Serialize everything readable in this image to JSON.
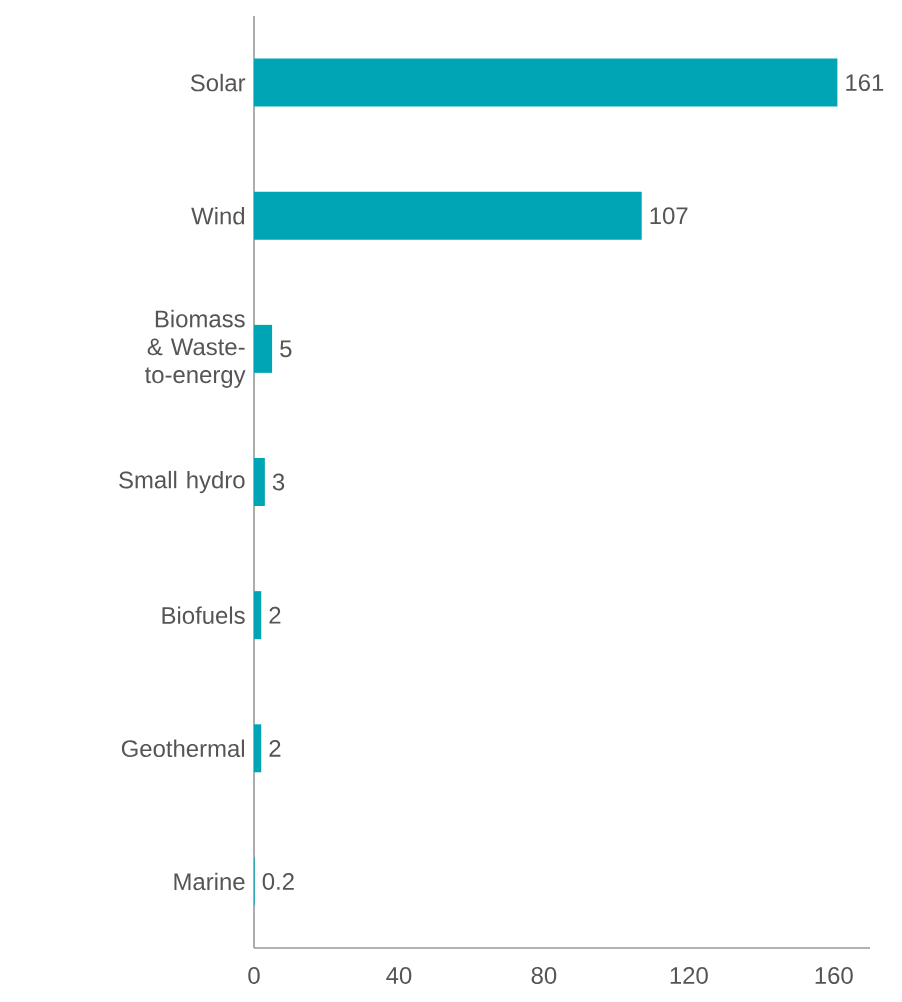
{
  "chart_data": {
    "type": "bar",
    "orientation": "horizontal",
    "categories": [
      "Solar",
      "Wind",
      "Biomass & Waste-to-energy",
      "Small hydro",
      "Biofuels",
      "Geothermal",
      "Marine"
    ],
    "values": [
      161,
      107,
      5,
      3,
      2,
      2,
      0.2
    ],
    "color": "#00a5b5",
    "xlim": [
      0,
      170
    ],
    "xticks": [
      0,
      40,
      80,
      120,
      160
    ],
    "data_labels": true
  }
}
